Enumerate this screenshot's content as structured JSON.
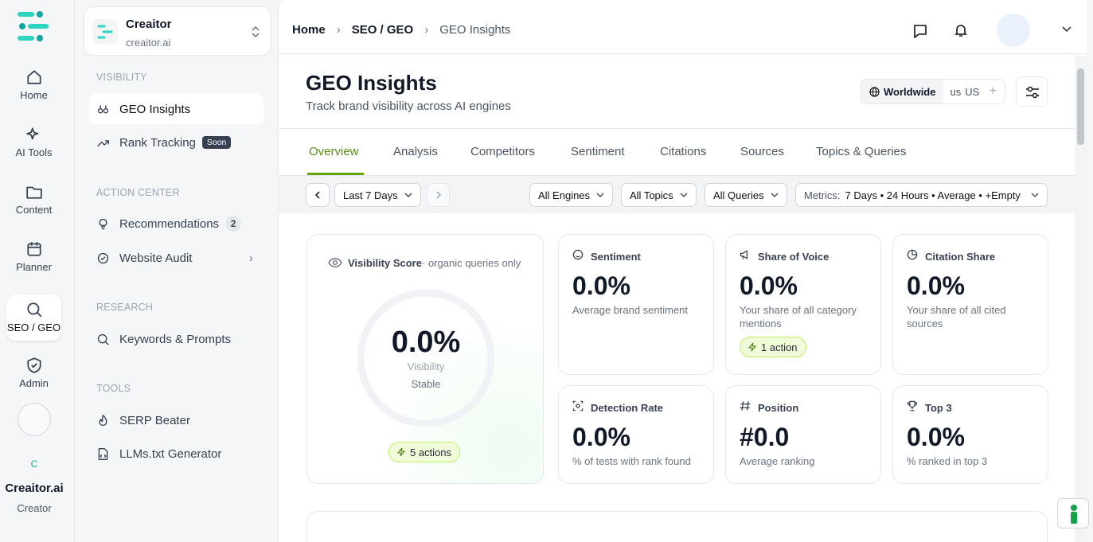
{
  "rail": {
    "items": [
      {
        "label": "Home"
      },
      {
        "label": "AI Tools"
      },
      {
        "label": "Content"
      },
      {
        "label": "Planner"
      },
      {
        "label": "SEO / GEO"
      },
      {
        "label": "Admin"
      }
    ],
    "user": {
      "initial": "C",
      "name": "Creaitor.ai",
      "role": "Creator"
    }
  },
  "workspace": {
    "name": "Creaitor",
    "domain": "creaitor.ai"
  },
  "nav": {
    "sections": [
      {
        "title": "VISIBILITY",
        "items": [
          {
            "label": "GEO Insights"
          },
          {
            "label": "Rank Tracking",
            "badge": "Soon"
          }
        ]
      },
      {
        "title": "ACTION CENTER",
        "items": [
          {
            "label": "Recommendations",
            "count": 2
          },
          {
            "label": "Website Audit"
          }
        ]
      },
      {
        "title": "RESEARCH",
        "items": [
          {
            "label": "Keywords & Prompts"
          }
        ]
      },
      {
        "title": "TOOLS",
        "items": [
          {
            "label": "SERP Beater"
          },
          {
            "label": "LLMs.txt Generator"
          }
        ]
      }
    ]
  },
  "breadcrumb": [
    "Home",
    "SEO / GEO",
    "GEO Insights"
  ],
  "header": {
    "title": "GEO Insights",
    "subtitle": "Track brand visibility across AI engines",
    "region": "Worldwide",
    "country_code": "us",
    "country": "US"
  },
  "tabs": [
    "Overview",
    "Analysis",
    "Competitors",
    "Sentiment",
    "Citations",
    "Sources",
    "Topics & Queries"
  ],
  "filters": {
    "period": "Last 7 Days",
    "engines": "All Engines",
    "topics": "All Topics",
    "queries": "All Queries",
    "metrics_label": "Metrics:",
    "metrics": "7 Days • 24 Hours • Average • +Empty"
  },
  "visibility": {
    "title": "Visibility Score",
    "note": "· organic queries only",
    "value": "0.0%",
    "label": "Visibility",
    "trend": "Stable",
    "actions": "5 actions"
  },
  "cards": [
    {
      "title": "Sentiment",
      "value": "0.0%",
      "description": "Average brand sentiment"
    },
    {
      "title": "Share of Voice",
      "value": "0.0%",
      "description": "Your share of all category mentions",
      "action": "1 action"
    },
    {
      "title": "Citation Share",
      "value": "0.0%",
      "description": "Your share of all cited sources"
    },
    {
      "title": "Detection Rate",
      "value": "0.0%",
      "description": "% of tests with rank found"
    },
    {
      "title": "Position",
      "value": "#0.0",
      "description": "Average ranking"
    },
    {
      "title": "Top 3",
      "value": "0.0%",
      "description": "% ranked in top 3"
    }
  ]
}
